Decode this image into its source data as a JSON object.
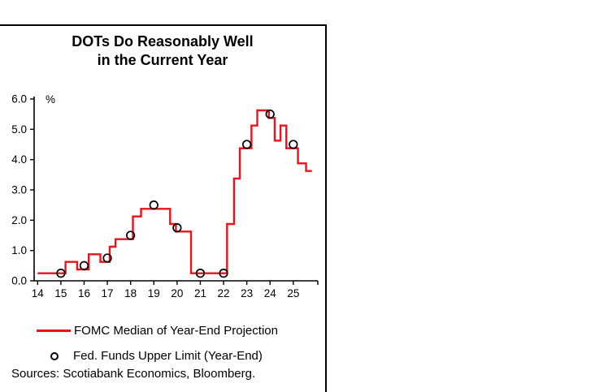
{
  "panel": {
    "title_line1": "DOTs Do Reasonably Well",
    "title_line2": "in the Current Year"
  },
  "legend": {
    "line_label": "FOMC Median of Year-End Projection",
    "marker_label": "Fed. Funds Upper Limit (Year-End)"
  },
  "footer": {
    "sources": "Sources: Scotiabank Economics, Bloomberg."
  },
  "colors": {
    "line": "#EC111A",
    "axis": "#000000",
    "marker": "#000000"
  },
  "chart_data": {
    "type": "line",
    "title": "DOTs Do Reasonably Well in the Current Year",
    "xlabel": "",
    "ylabel": "%",
    "ylim": [
      0,
      6
    ],
    "yticks": [
      0,
      1,
      2,
      3,
      4,
      5,
      6
    ],
    "ytick_labels": [
      "0.0",
      "1.0",
      "2.0",
      "3.0",
      "4.0",
      "5.0",
      "6.0"
    ],
    "xlim": [
      13.85,
      25.95
    ],
    "xticks": [
      14,
      15,
      16,
      17,
      18,
      19,
      20,
      21,
      22,
      23,
      24,
      25
    ],
    "xtick_labels": [
      "14",
      "15",
      "16",
      "17",
      "18",
      "19",
      "20",
      "21",
      "22",
      "23",
      "24",
      "25"
    ],
    "grid": false,
    "legend_position": "bottom",
    "series": [
      {
        "name": "FOMC Median of Year-End Projection",
        "style": "step",
        "color": "#EC111A",
        "x_end": 25.8,
        "points": [
          [
            14.0,
            0.25
          ],
          [
            15.2,
            0.625
          ],
          [
            15.7,
            0.375
          ],
          [
            16.2,
            0.875
          ],
          [
            16.7,
            0.625
          ],
          [
            17.1,
            1.125
          ],
          [
            17.35,
            1.375
          ],
          [
            18.1,
            2.125
          ],
          [
            18.45,
            2.375
          ],
          [
            19.7,
            1.875
          ],
          [
            19.95,
            1.625
          ],
          [
            20.6,
            0.25
          ],
          [
            22.15,
            1.875
          ],
          [
            22.45,
            3.375
          ],
          [
            22.7,
            4.375
          ],
          [
            23.2,
            5.125
          ],
          [
            23.45,
            5.625
          ],
          [
            23.95,
            5.375
          ],
          [
            24.2,
            4.625
          ],
          [
            24.45,
            5.125
          ],
          [
            24.7,
            4.375
          ],
          [
            25.2,
            3.875
          ],
          [
            25.55,
            3.625
          ]
        ]
      },
      {
        "name": "Fed. Funds Upper Limit (Year-End)",
        "style": "open-circle",
        "color": "#000000",
        "points": [
          [
            15,
            0.25
          ],
          [
            16,
            0.5
          ],
          [
            17,
            0.75
          ],
          [
            18,
            1.5
          ],
          [
            19,
            2.5
          ],
          [
            20,
            1.75
          ],
          [
            21,
            0.25
          ],
          [
            22,
            0.25
          ],
          [
            23,
            4.5
          ],
          [
            24,
            5.5
          ],
          [
            25,
            4.5
          ]
        ]
      }
    ]
  }
}
